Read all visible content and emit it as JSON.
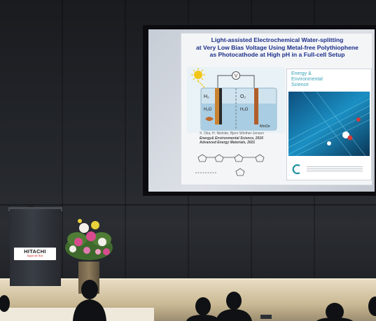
{
  "scene": {
    "slide": {
      "title_lines": [
        "Light-assisted Electrochemical Water-splitting",
        "at Very Low Bias Voltage Using Metal-free Polythiophene",
        "as Photocathode at High pH in a Full-cell Setup"
      ],
      "diagram": {
        "meter_label": "V",
        "left_gas": "H₂",
        "left_liquid": "H₂O",
        "right_gas": "O₂",
        "right_liquid": "H₂O",
        "right_material": "MnOx"
      },
      "authors": "X. Oka, H. Nishide, Bjorn Winther-Jensen",
      "citation_1": "Energy& Environmental Science, 2016",
      "citation_2": "Advanced Energy Materials, 2021",
      "cover": {
        "title_lines": [
          "Energy &",
          "Environmental",
          "Science"
        ]
      }
    },
    "podium": {
      "brand": "HITACHI",
      "slogan": "Inspire the Next"
    },
    "colors": {
      "slide_title": "#1b2f8a",
      "cover_accent": "#3aa1b7",
      "wall": "#23262b",
      "stage_floor": "#c9b893",
      "flowers_pink": "#d84c8f",
      "flowers_white": "#f3f0ea"
    }
  }
}
